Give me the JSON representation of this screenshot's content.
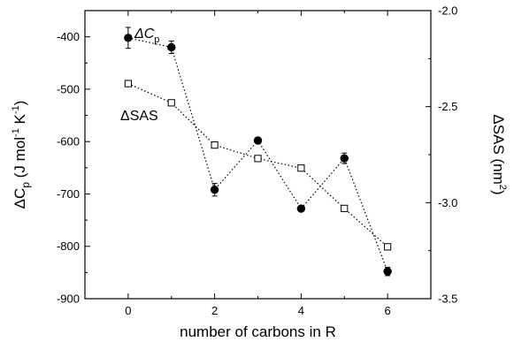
{
  "chart_data": {
    "type": "scatter",
    "xlabel": "number of carbons in R",
    "ylabel_left": {
      "main": "ΔC",
      "sub": "p",
      "unit_open": " (J mol",
      "sup1": "-1",
      "unit_mid": " K",
      "sup2": "-1",
      "unit_close": ")"
    },
    "ylabel_right": {
      "main": "ΔSAS (nm",
      "sup": "2",
      "close": ")"
    },
    "xlim": [
      -1,
      7
    ],
    "xticks": [
      0,
      2,
      4,
      6
    ],
    "xtick_labels": [
      "0",
      "2",
      "4",
      "6"
    ],
    "ylim_left": [
      -900,
      -350
    ],
    "yticks_left": [
      -900,
      -800,
      -700,
      -600,
      -500,
      -400
    ],
    "ytick_labels_left": [
      "-900",
      "-800",
      "-700",
      "-600",
      "-500",
      "-400"
    ],
    "ylim_right": [
      -3.5,
      -2.0
    ],
    "yticks_right": [
      -3.5,
      -3.0,
      -2.5,
      -2.0
    ],
    "ytick_labels_right": [
      "-3.5",
      "-3.0",
      "-2.5",
      "-2.0"
    ],
    "series": [
      {
        "name": "ΔCp",
        "label_main": "ΔC",
        "label_sub": "p",
        "axis": "left",
        "marker": "filled-circle",
        "x": [
          0,
          1,
          2,
          3,
          4,
          5,
          6
        ],
        "y": [
          -402,
          -420,
          -692,
          -598,
          -728,
          -632,
          -848
        ],
        "err": [
          20,
          12,
          12,
          0,
          0,
          10,
          8
        ]
      },
      {
        "name": "ΔSAS",
        "label": "ΔSAS",
        "axis": "right",
        "marker": "open-square",
        "x": [
          0,
          1,
          2,
          3,
          4,
          5,
          6
        ],
        "y": [
          -2.38,
          -2.48,
          -2.7,
          -2.77,
          -2.82,
          -3.03,
          -3.23
        ],
        "err": [
          0,
          0,
          0,
          0,
          0,
          0,
          0
        ]
      }
    ]
  }
}
